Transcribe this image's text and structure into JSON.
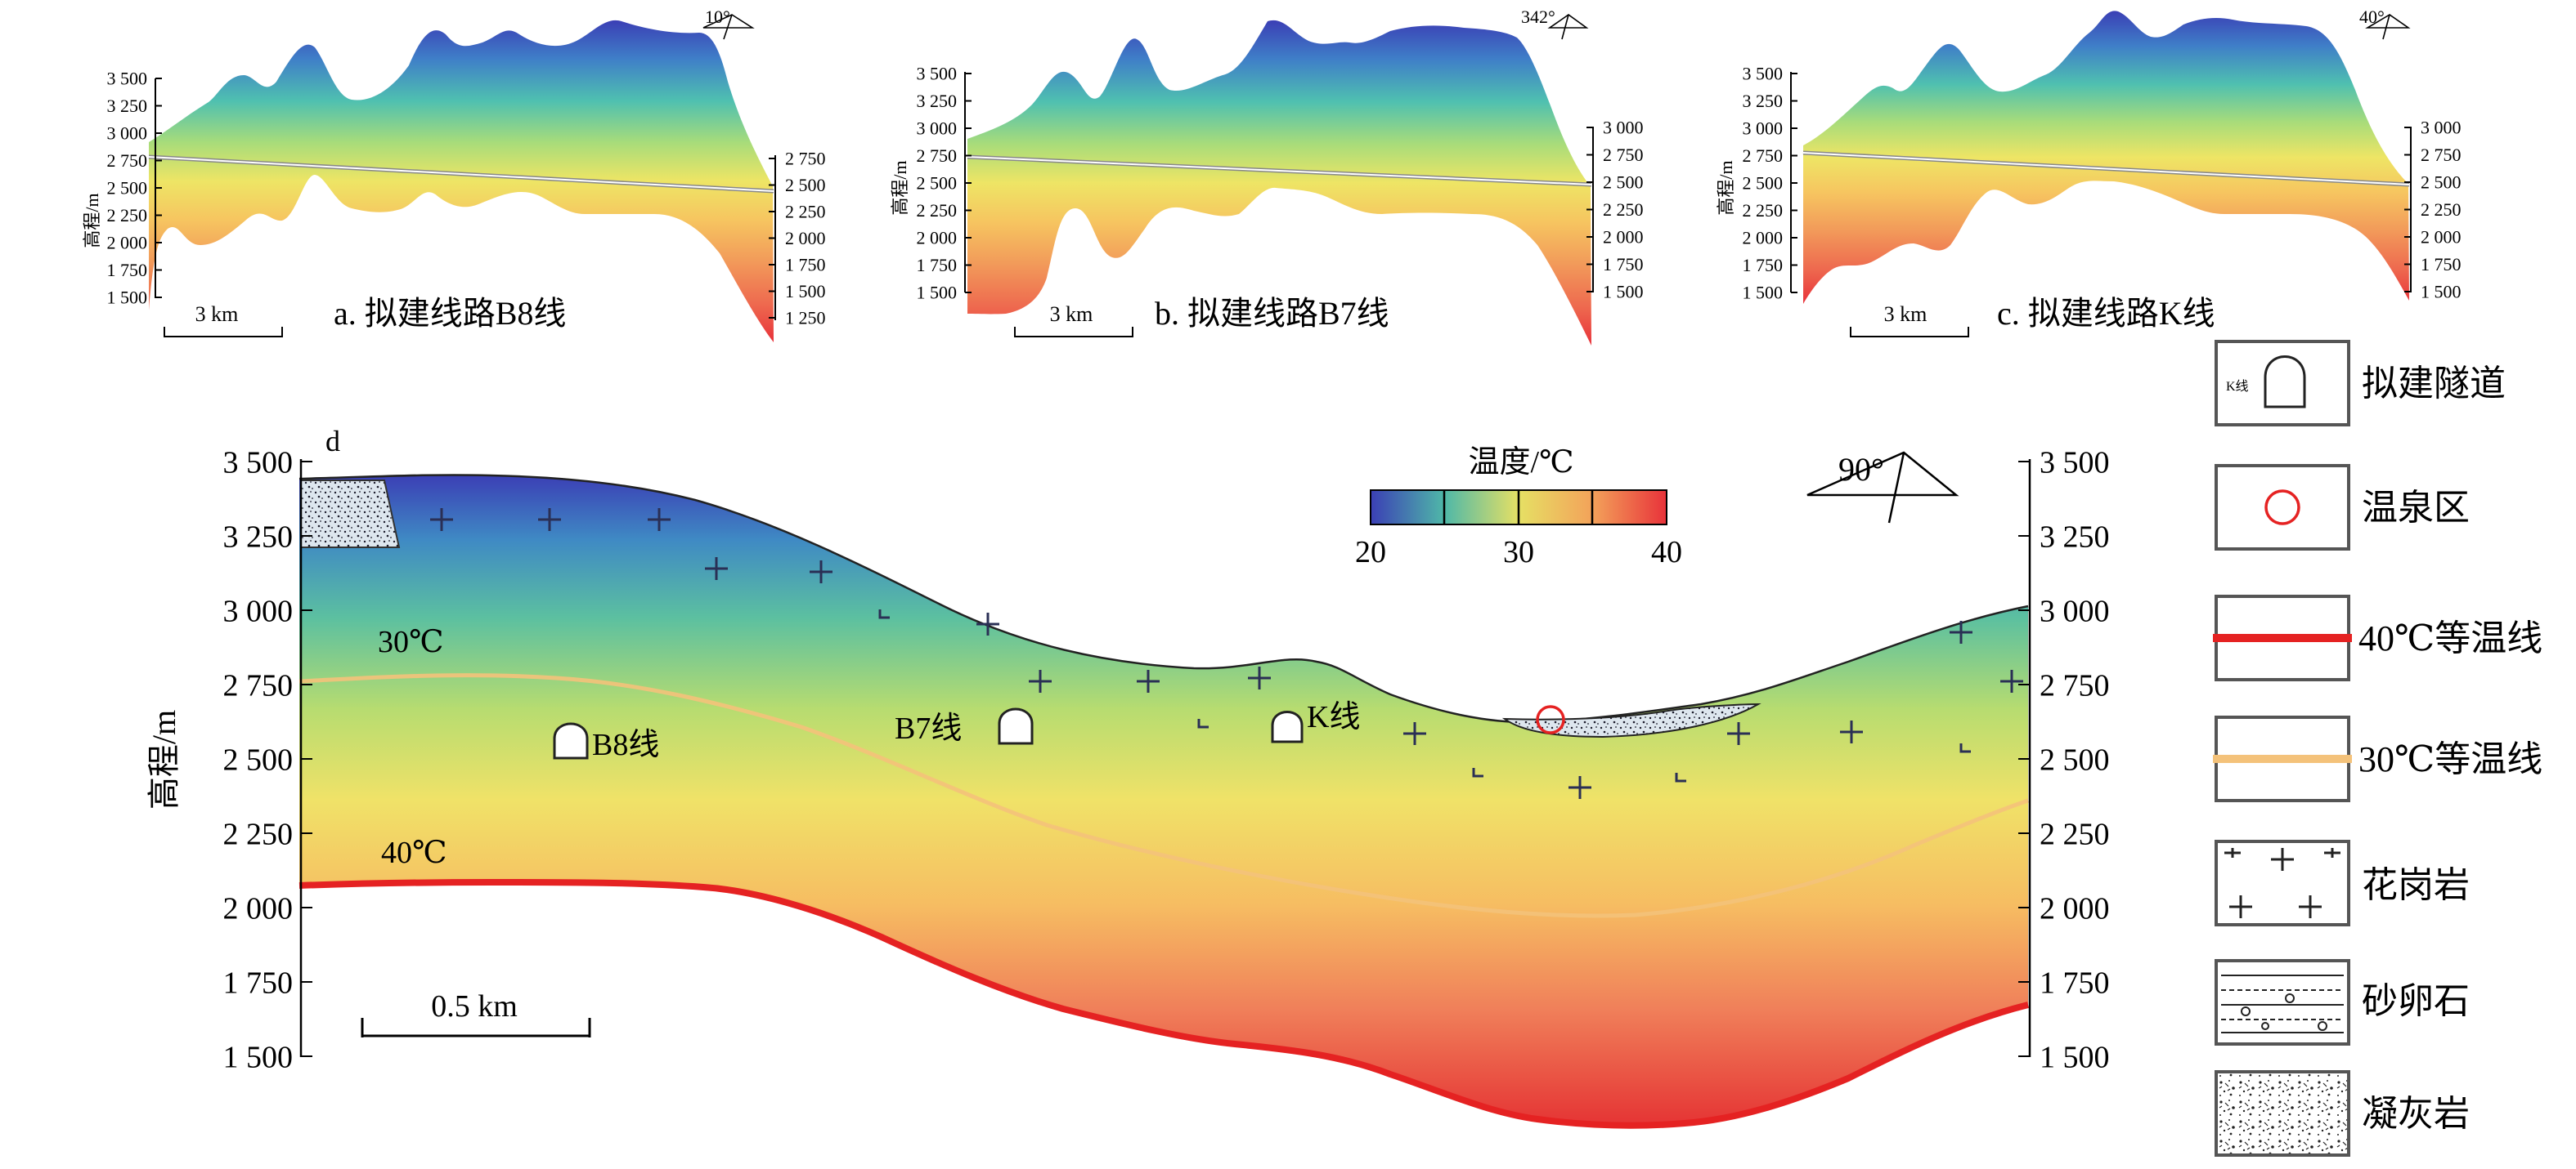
{
  "panel_a": {
    "azimuth": "10°",
    "left_ticks": [
      "3 500",
      "3 250",
      "3 000",
      "2 750",
      "2 500",
      "2 250",
      "2 000",
      "1 750",
      "1 500"
    ],
    "right_ticks": [
      "2 750",
      "2 500",
      "2 250",
      "2 000",
      "1 750",
      "1 500",
      "1 250"
    ],
    "ylabel": "高程/m",
    "scale": "3 km",
    "caption": "a. 拟建线路B8线"
  },
  "panel_b": {
    "azimuth": "342°",
    "left_ticks": [
      "3 500",
      "3 250",
      "3 000",
      "2 750",
      "2 500",
      "2 250",
      "2 000",
      "1 750",
      "1 500"
    ],
    "right_ticks": [
      "3 000",
      "2 750",
      "2 500",
      "2 250",
      "2 000",
      "1 750",
      "1 500"
    ],
    "ylabel": "高程/m",
    "scale": "3 km",
    "caption": "b. 拟建线路B7线"
  },
  "panel_c": {
    "azimuth": "40°",
    "left_ticks": [
      "3 500",
      "3 250",
      "3 000",
      "2 750",
      "2 500",
      "2 250",
      "2 000",
      "1 750",
      "1 500"
    ],
    "right_ticks": [
      "3 000",
      "2 750",
      "2 500",
      "2 250",
      "2 000",
      "1 750",
      "1 500"
    ],
    "ylabel": "高程/m",
    "scale": "3 km",
    "caption": "c. 拟建线路K线"
  },
  "panel_d": {
    "label": "d",
    "azimuth": "90°",
    "ylabel": "高程/m",
    "left_ticks": [
      "3 500",
      "3 250",
      "3 000",
      "2 750",
      "2 500",
      "2 250",
      "2 000",
      "1 750",
      "1 500"
    ],
    "right_ticks": [
      "3 500",
      "3 250",
      "3 000",
      "2 750",
      "2 500",
      "2 250",
      "2 000",
      "1 750",
      "1 500"
    ],
    "scale": "0.5 km",
    "iso30_label": "30℃",
    "iso40_label": "40℃",
    "tunnels": {
      "b8": "B8线",
      "b7": "B7线",
      "k": "K线"
    },
    "colorbar": {
      "title": "温度/℃",
      "ticks": [
        "20",
        "30",
        "40"
      ]
    }
  },
  "legend": {
    "tunnel_icon_text": "K线",
    "items": [
      "拟建隧道",
      "温泉区",
      "40℃等温线",
      "30℃等温线",
      "花岗岩",
      "砂卵石",
      "凝灰岩"
    ]
  },
  "colors": {
    "cold": "#3b3fb5",
    "mid": "#e8e060",
    "hot": "#e8323a",
    "iso30": "#f4c27a",
    "iso40": "#e52222"
  }
}
